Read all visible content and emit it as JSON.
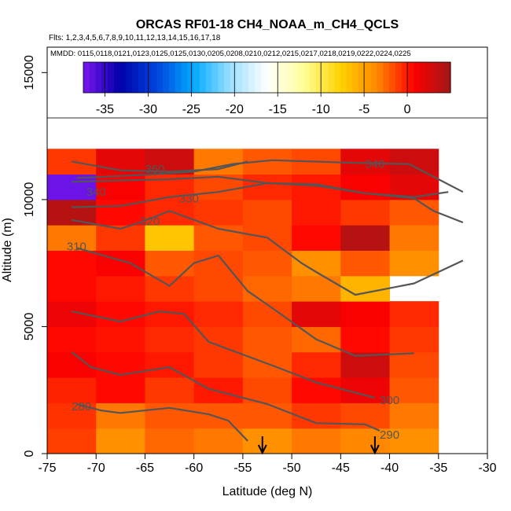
{
  "chart_data": {
    "type": "heatmap",
    "title": "ORCAS RF01-18 CH4_NOAA_m_CH4_QCLS",
    "flights_label": "Flts: 1,2,3,4,5,6,7,8,9,10,11,12,13,14,15,16,17,18",
    "dates_label": "MMDD: 0115,0118,0121,0123,0125,0125,0130,0205,0208,0210,0212,0215,0217,0218,0219,0222,0224,0225",
    "xlabel": "Latitude (deg N)",
    "ylabel": "Altitude (m)",
    "xlim": [
      -75,
      -30
    ],
    "ylim": [
      0,
      16000
    ],
    "x_ticks": [
      -75,
      -70,
      -65,
      -60,
      -55,
      -50,
      -45,
      -40,
      -35,
      -30
    ],
    "y_ticks": [
      0,
      5000,
      10000,
      15000
    ],
    "colorbar": {
      "range": [
        -37.5,
        5
      ],
      "ticks": [
        -35,
        -30,
        -25,
        -20,
        -15,
        -10,
        -5,
        0
      ],
      "stops": [
        "#7a16f0",
        "#0000aa",
        "#0044dd",
        "#00aaff",
        "#9adfff",
        "#ffffff",
        "#ffff99",
        "#ffd200",
        "#ff8800",
        "#ff0000",
        "#a01818"
      ]
    },
    "cells": {
      "lat_edges": [
        -75,
        -70,
        -65,
        -60,
        -55,
        -50,
        -45,
        -40,
        -35
      ],
      "alt_edges": [
        0,
        1000,
        2000,
        3000,
        4000,
        5000,
        6000,
        7000,
        8000,
        9000,
        10000,
        11000,
        12000
      ],
      "values": [
        [
          -1.2,
          -4,
          -2.5,
          -3,
          -4,
          -3,
          -3.5,
          -4
        ],
        [
          -0.8,
          -3,
          -2,
          -2,
          -2,
          -1,
          -1.5,
          -3
        ],
        [
          -0.3,
          0.5,
          -1,
          0,
          -1.5,
          0.5,
          1.5,
          -2
        ],
        [
          1,
          0.5,
          0,
          -1,
          -2,
          -0.5,
          3,
          -1.5
        ],
        [
          0.5,
          0.2,
          -0.5,
          -1,
          -2,
          -2.5,
          0.5,
          -1
        ],
        [
          1.5,
          0.5,
          0,
          -0.5,
          -1.5,
          2,
          1,
          -0.5
        ],
        [
          0.5,
          0,
          -1,
          -1.5,
          -2.5,
          -3,
          -6,
          null
        ],
        [
          0.5,
          1,
          -2,
          -1.5,
          -2,
          -4,
          -2,
          -4
        ],
        [
          -3,
          -1,
          -7,
          -2,
          -1.5,
          0.5,
          4,
          -3
        ],
        [
          4,
          0.5,
          -0.5,
          -1,
          -1.5,
          0,
          -1,
          -2
        ],
        [
          -37,
          1,
          -0.5,
          -1.5,
          -0.5,
          0,
          1,
          2
        ],
        [
          -1,
          2,
          3,
          -3,
          -2,
          -1.5,
          2,
          3
        ]
      ]
    },
    "contours": [
      {
        "label": "280",
        "points": [
          [
            -72,
            1950
          ],
          [
            -69.5,
            1700
          ],
          [
            -67.5,
            1600
          ],
          [
            -62.5,
            1800
          ],
          [
            -58.5,
            1550
          ],
          [
            -56.5,
            1300
          ],
          [
            -54.5,
            500
          ]
        ]
      },
      {
        "label": "290",
        "points": [
          [
            -72.5,
            4000
          ],
          [
            -70.5,
            3400
          ],
          [
            -67.5,
            3100
          ],
          [
            -62.5,
            3400
          ],
          [
            -58.5,
            2550
          ],
          [
            -52.5,
            1950
          ],
          [
            -47.5,
            1200
          ],
          [
            -42.5,
            1150
          ],
          [
            -41,
            900
          ]
        ]
      },
      {
        "label": "300",
        "points": [
          [
            -72.5,
            5600
          ],
          [
            -67.5,
            5200
          ],
          [
            -63.5,
            5600
          ],
          [
            -61,
            5500
          ],
          [
            -58.5,
            4400
          ],
          [
            -55,
            3900
          ],
          [
            -51.5,
            3400
          ],
          [
            -47.5,
            2800
          ],
          [
            -43.5,
            2400
          ],
          [
            -41.5,
            2200
          ]
        ]
      },
      {
        "label": "310",
        "points": [
          [
            -72,
            8100
          ],
          [
            -66.5,
            7500
          ],
          [
            -62.5,
            6600
          ],
          [
            -60,
            7500
          ],
          [
            -57.5,
            7800
          ],
          [
            -54.5,
            6400
          ],
          [
            -51.5,
            5600
          ],
          [
            -47.5,
            4500
          ],
          [
            -43.5,
            3850
          ],
          [
            -37.5,
            3950
          ]
        ]
      },
      {
        "label": "320",
        "points": [
          [
            -72.5,
            9200
          ],
          [
            -67.5,
            8850
          ],
          [
            -65.5,
            9100
          ],
          [
            -62.5,
            9550
          ],
          [
            -57.5,
            8850
          ],
          [
            -52.5,
            8500
          ],
          [
            -49,
            7500
          ],
          [
            -47.5,
            7150
          ],
          [
            -43.5,
            6250
          ],
          [
            -37.5,
            6700
          ],
          [
            -32.5,
            7600
          ]
        ]
      },
      {
        "label": "330",
        "points": [
          [
            -72.5,
            9700
          ],
          [
            -67.5,
            9750
          ],
          [
            -62.5,
            10100
          ],
          [
            -57.5,
            10300
          ],
          [
            -52.5,
            10650
          ],
          [
            -47.5,
            10600
          ],
          [
            -42.5,
            10250
          ],
          [
            -37.5,
            10050
          ],
          [
            -35.5,
            9550
          ],
          [
            -32.5,
            9100
          ]
        ]
      },
      {
        "label": "340",
        "points": [
          [
            -72.5,
            10700
          ],
          [
            -67.5,
            10750
          ],
          [
            -62.5,
            10800
          ],
          [
            -57.5,
            10900
          ],
          [
            -52.5,
            10650
          ],
          [
            -47.5,
            10550
          ],
          [
            -42.5,
            10250
          ],
          [
            -37.5,
            10100
          ],
          [
            -34,
            10300
          ]
        ]
      },
      {
        "label": "350",
        "points": [
          [
            -72,
            10850
          ],
          [
            -69,
            10900
          ],
          [
            -64,
            11000
          ],
          [
            -60,
            11100
          ],
          [
            -56,
            11400
          ],
          [
            -52,
            11550
          ],
          [
            -48,
            11500
          ],
          [
            -44,
            11450
          ],
          [
            -38,
            11400
          ],
          [
            -32.5,
            10300
          ]
        ]
      },
      {
        "label": "360",
        "points": [
          [
            -72.5,
            11500
          ],
          [
            -67.5,
            11150
          ],
          [
            -62.5,
            11100
          ],
          [
            -57.5,
            11200
          ],
          [
            -54.5,
            11500
          ]
        ]
      }
    ],
    "contour_labels": [
      {
        "text": "360",
        "x": -64,
        "y": 11200
      },
      {
        "text": "340",
        "x": -41.5,
        "y": 11400
      },
      {
        "text": "340",
        "x": -70,
        "y": 10300
      },
      {
        "text": "330",
        "x": -60.5,
        "y": 10050
      },
      {
        "text": "320",
        "x": -64.5,
        "y": 9150
      },
      {
        "text": "310",
        "x": -72,
        "y": 8150
      },
      {
        "text": "300",
        "x": -40,
        "y": 2100
      },
      {
        "text": "290",
        "x": -40,
        "y": 750
      },
      {
        "text": "280",
        "x": -71.5,
        "y": 1850
      }
    ],
    "markers": [
      {
        "type": "arrow-down",
        "lat": -53
      },
      {
        "type": "arrow-down",
        "lat": -41.5
      }
    ]
  }
}
